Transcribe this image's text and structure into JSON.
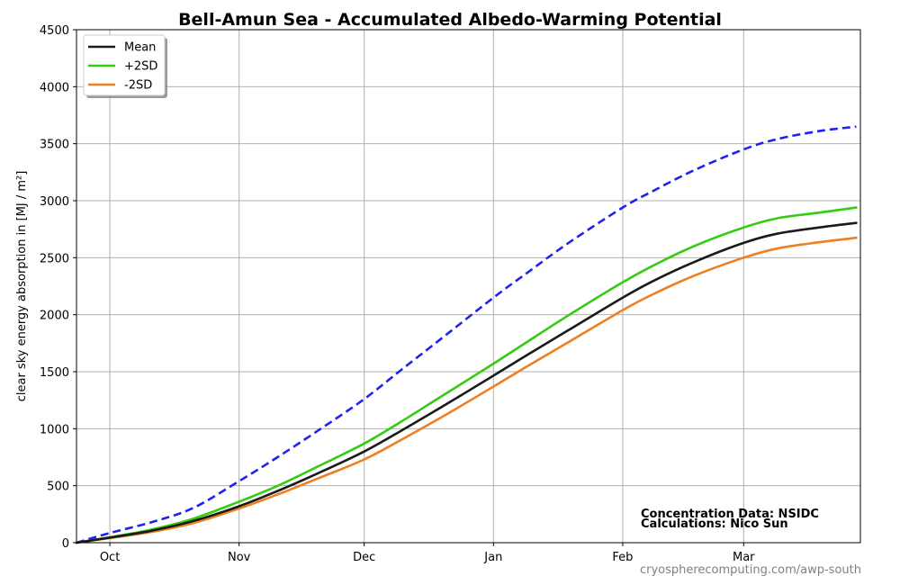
{
  "chart_data": {
    "type": "line",
    "title": "Bell-Amun Sea - Accumulated Albedo-Warming Potential",
    "ylabel": "clear sky energy absorption in  [MJ / m²]",
    "ylim": [
      0,
      4500
    ],
    "xlim": [
      -8,
      180
    ],
    "yticks": [
      0,
      500,
      1000,
      1500,
      2000,
      2500,
      3000,
      3500,
      4000,
      4500
    ],
    "xticks": [
      {
        "x": 0,
        "label": "Oct"
      },
      {
        "x": 31,
        "label": "Nov"
      },
      {
        "x": 61,
        "label": "Dec"
      },
      {
        "x": 92,
        "label": "Jan"
      },
      {
        "x": 123,
        "label": "Feb"
      },
      {
        "x": 152,
        "label": "Mar"
      }
    ],
    "grid": true,
    "legend_position": "top-left",
    "x": [
      -8,
      0,
      10,
      20,
      31,
      40,
      50,
      61,
      70,
      80,
      92,
      100,
      110,
      123,
      130,
      140,
      152,
      160,
      170,
      179
    ],
    "series": [
      {
        "name": "Mean",
        "color": "#1a1a1a",
        "style": "solid",
        "legend": true,
        "values": [
          0,
          45,
          105,
          190,
          320,
          450,
          610,
          800,
          985,
          1200,
          1465,
          1645,
          1865,
          2150,
          2290,
          2460,
          2630,
          2710,
          2765,
          2805
        ]
      },
      {
        "name": "+2SD",
        "color": "#33cc11",
        "style": "solid",
        "legend": true,
        "values": [
          0,
          48,
          115,
          210,
          360,
          495,
          670,
          870,
          1065,
          1295,
          1570,
          1760,
          1995,
          2285,
          2425,
          2600,
          2765,
          2845,
          2895,
          2940
        ]
      },
      {
        "name": "-2SD",
        "color": "#ee7f22",
        "style": "solid",
        "legend": true,
        "values": [
          0,
          40,
          95,
          172,
          300,
          420,
          565,
          730,
          905,
          1110,
          1370,
          1545,
          1760,
          2040,
          2175,
          2340,
          2500,
          2580,
          2635,
          2675
        ]
      },
      {
        "color": "#2222ee",
        "style": "dashed",
        "legend": false,
        "values": [
          0,
          85,
          180,
          305,
          540,
          745,
          985,
          1260,
          1520,
          1805,
          2150,
          2365,
          2630,
          2940,
          3080,
          3265,
          3450,
          3540,
          3610,
          3650
        ]
      }
    ],
    "annotations": [
      "Concentration Data: NSIDC",
      "Calculations: Nico Sun"
    ]
  },
  "footer": "cryospherecomputing.com/awp-south"
}
